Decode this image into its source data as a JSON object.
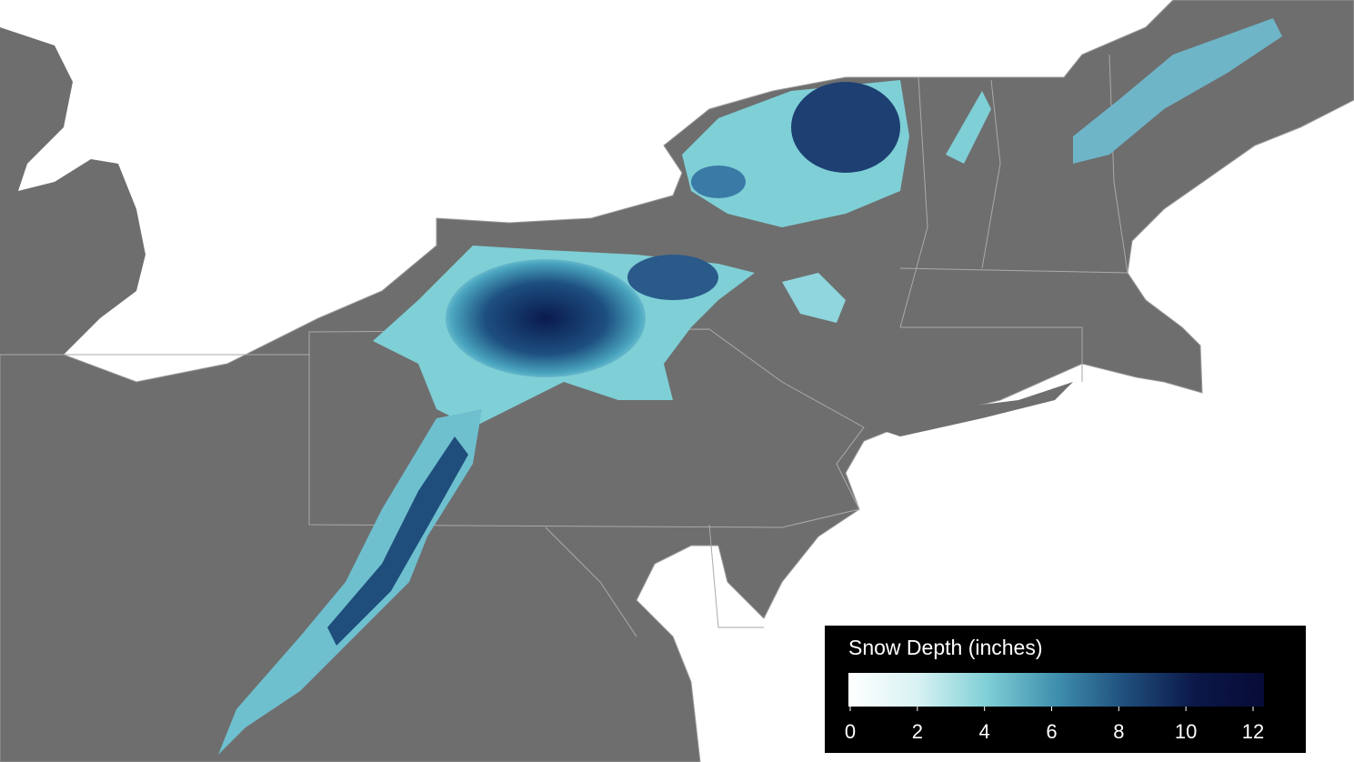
{
  "legend": {
    "title": "Snow Depth (inches)",
    "range": [
      0,
      12
    ],
    "ticks": [
      0,
      2,
      4,
      6,
      8,
      10,
      12
    ],
    "colors": [
      "#ffffff",
      "#d8f2f3",
      "#7fcfd6",
      "#3f8fae",
      "#1f4e7c",
      "#0b1848",
      "#070b36"
    ]
  }
}
